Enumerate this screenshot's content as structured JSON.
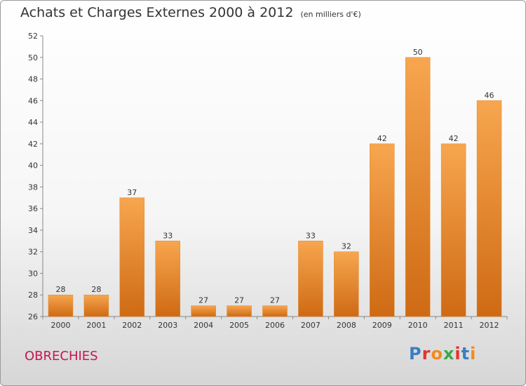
{
  "title": "Achats et Charges Externes 2000 à 2012",
  "unit_note": "(en milliers d'€)",
  "commune": "OBRECHIES",
  "logo": {
    "text": "Proxiti",
    "letter_colors": [
      "#3a7fc1",
      "#e2342d",
      "#f28a1d",
      "#3aa948",
      "#e2342d",
      "#3a7fc1",
      "#f28a1d"
    ]
  },
  "colors": {
    "bar_light": "#f7a64f",
    "bar_dark": "#cf6a14",
    "commune": "#c71650"
  },
  "chart_data": {
    "type": "bar",
    "title": "Achats et Charges Externes 2000 à 2012",
    "categories": [
      "2000",
      "2001",
      "2002",
      "2003",
      "2004",
      "2005",
      "2006",
      "2007",
      "2008",
      "2009",
      "2010",
      "2011",
      "2012"
    ],
    "values": [
      28,
      28,
      37,
      33,
      27,
      27,
      27,
      33,
      32,
      42,
      50,
      42,
      46
    ],
    "ylim": [
      26,
      52
    ],
    "yticks": [
      26,
      28,
      30,
      32,
      34,
      36,
      38,
      40,
      42,
      44,
      46,
      48,
      50,
      52
    ],
    "grid": false,
    "legend": "none"
  }
}
